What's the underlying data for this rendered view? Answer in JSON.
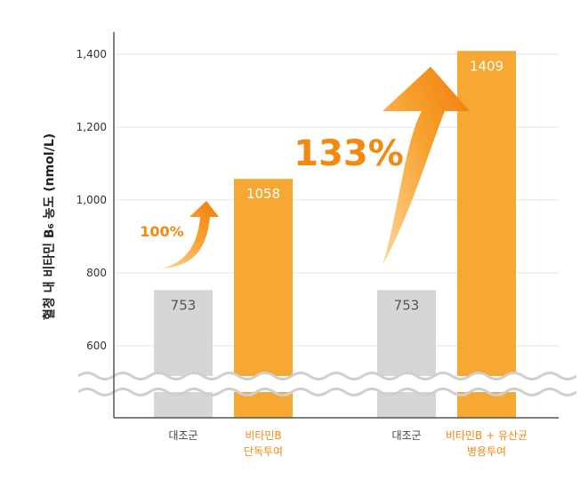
{
  "chart_data": {
    "type": "bar",
    "ylabel": "혈청 내 비타민 B₆ 농도 (nmol/L)",
    "xlabel": "",
    "ylim": [
      500,
      1450
    ],
    "y_ticks": [
      "600",
      "800",
      "1,000",
      "1,200",
      "1,400"
    ],
    "axis_break": true,
    "grid": true,
    "categories": [
      {
        "line1": "대조군",
        "line2": ""
      },
      {
        "line1": "비타민B",
        "line2": "단독투여"
      },
      {
        "line1": "대조군",
        "line2": ""
      },
      {
        "line1": "비타민B + 유산균",
        "line2": "병용투여"
      }
    ],
    "values": [
      753,
      1058,
      753,
      1409
    ],
    "value_labels": [
      "753",
      "1058",
      "753",
      "1409"
    ],
    "bar_colors": [
      "#d6d6d6",
      "#f7a833",
      "#d6d6d6",
      "#f7a833"
    ],
    "category_colors": [
      "#444444",
      "#f28a12",
      "#444444",
      "#f28a12"
    ],
    "value_label_colors": [
      "#555555",
      "#ffffff",
      "#555555",
      "#ffffff"
    ],
    "annotations": [
      "100%",
      "133%"
    ]
  },
  "colors": {
    "accent": "#f28a12",
    "control": "#d6d6d6",
    "treatment": "#f7a833"
  }
}
